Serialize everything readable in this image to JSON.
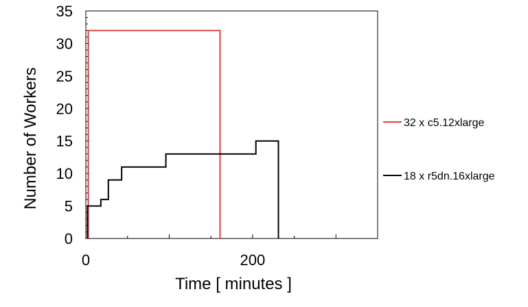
{
  "chart_data": {
    "type": "line",
    "xlabel": "Time [ minutes ]",
    "ylabel": "Number of Workers",
    "xlim": [
      0,
      350
    ],
    "ylim": [
      0,
      35
    ],
    "x_ticks": [
      0,
      200
    ],
    "y_ticks": [
      0,
      5,
      10,
      15,
      20,
      25,
      30,
      35
    ],
    "step": true,
    "grid": false,
    "legend_position": "right",
    "series": [
      {
        "name": "32 x c5.12xlarge",
        "color": "#e0403a",
        "points": [
          [
            3,
            0
          ],
          [
            3,
            32
          ],
          [
            161,
            32
          ],
          [
            161,
            0
          ]
        ]
      },
      {
        "name": "18 x r5dn.16xlarge",
        "color": "#000000",
        "points": [
          [
            2,
            0
          ],
          [
            2,
            5
          ],
          [
            18,
            5
          ],
          [
            18,
            6
          ],
          [
            27,
            6
          ],
          [
            27,
            9
          ],
          [
            43,
            9
          ],
          [
            43,
            11
          ],
          [
            96,
            11
          ],
          [
            96,
            13
          ],
          [
            204,
            13
          ],
          [
            204,
            15
          ],
          [
            231,
            15
          ],
          [
            231,
            0
          ]
        ]
      }
    ]
  }
}
